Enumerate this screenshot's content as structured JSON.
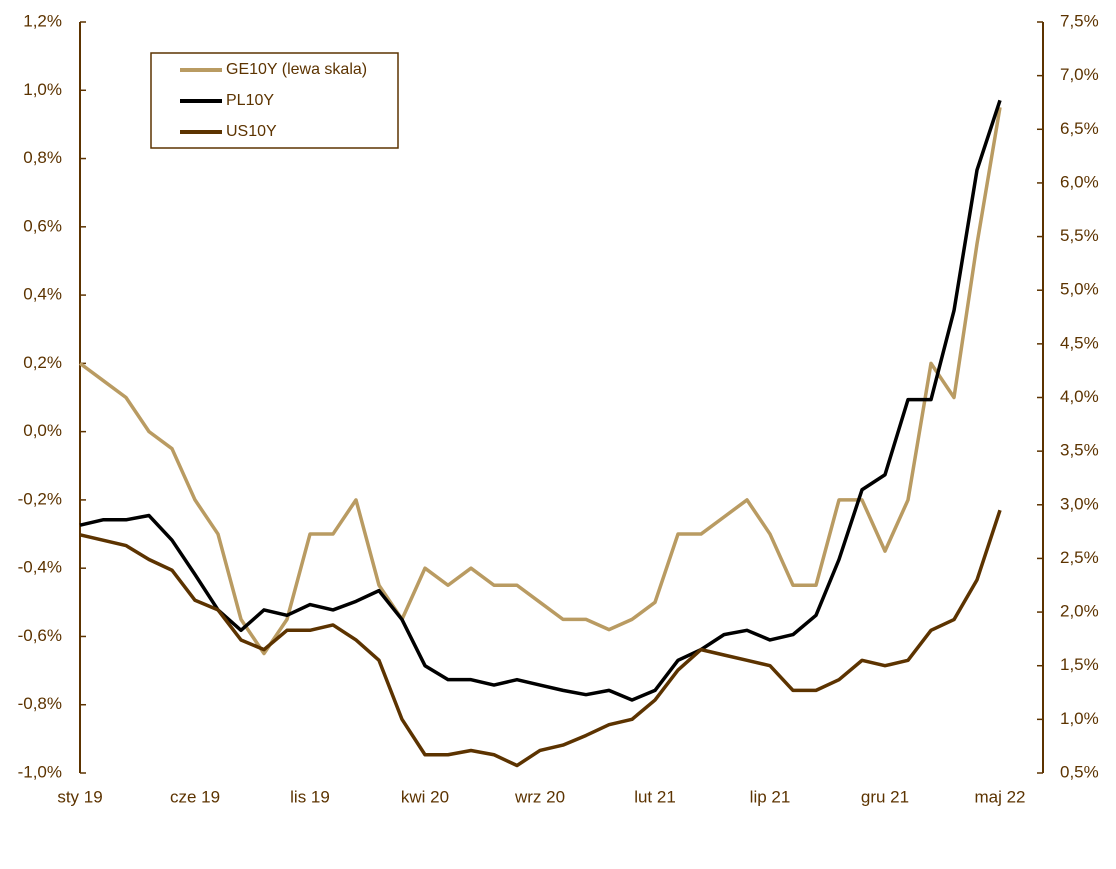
{
  "chart_data": {
    "type": "line",
    "categories": [
      "sty 19",
      null,
      null,
      null,
      null,
      "cze 19",
      null,
      null,
      null,
      null,
      "lis 19",
      null,
      null,
      null,
      null,
      "kwi 20",
      null,
      null,
      null,
      null,
      "wrz 20",
      null,
      null,
      null,
      null,
      "lut 21",
      null,
      null,
      null,
      null,
      "lip 21",
      null,
      null,
      null,
      null,
      "gru 21",
      null,
      null,
      null,
      null,
      "maj 22"
    ],
    "series": [
      {
        "name": "GE10Y (lewa skala)",
        "color": "#b99b62",
        "axis": "y",
        "values": [
          0.2,
          0.15,
          0.1,
          0.0,
          -0.05,
          -0.2,
          -0.3,
          -0.55,
          -0.65,
          -0.55,
          -0.3,
          -0.3,
          -0.2,
          -0.45,
          -0.55,
          -0.4,
          -0.45,
          -0.4,
          -0.45,
          -0.45,
          -0.5,
          -0.55,
          -0.55,
          -0.58,
          -0.55,
          -0.5,
          -0.3,
          -0.3,
          -0.25,
          -0.2,
          -0.3,
          -0.45,
          -0.45,
          -0.2,
          -0.2,
          -0.35,
          -0.2,
          0.2,
          0.1,
          0.55,
          0.95
        ]
      },
      {
        "name": "PL10Y",
        "color": "#000000",
        "axis": "y2",
        "values": [
          2.81,
          2.86,
          2.86,
          2.9,
          2.67,
          2.35,
          2.02,
          1.83,
          2.02,
          1.97,
          2.07,
          2.02,
          2.1,
          2.2,
          1.93,
          1.5,
          1.37,
          1.37,
          1.32,
          1.37,
          1.32,
          1.27,
          1.23,
          1.27,
          1.18,
          1.27,
          1.55,
          1.65,
          1.79,
          1.83,
          1.74,
          1.79,
          1.97,
          2.49,
          3.14,
          3.28,
          3.98,
          3.98,
          4.81,
          6.12,
          6.77
        ]
      },
      {
        "name": "US10Y",
        "color": "#5c3300",
        "axis": "y2",
        "values": [
          2.72,
          2.67,
          2.62,
          2.49,
          2.39,
          2.11,
          2.02,
          1.74,
          1.65,
          1.83,
          1.83,
          1.88,
          1.74,
          1.55,
          1.0,
          0.67,
          0.67,
          0.71,
          0.67,
          0.57,
          0.71,
          0.76,
          0.85,
          0.95,
          1.0,
          1.18,
          1.46,
          1.65,
          1.6,
          1.55,
          1.5,
          1.27,
          1.27,
          1.37,
          1.55,
          1.5,
          1.55,
          1.83,
          1.93,
          2.3,
          2.95
        ]
      }
    ],
    "ylim": [
      -1.0,
      1.2
    ],
    "yticks": [
      {
        "value": -1.0,
        "label": "-1,0%"
      },
      {
        "value": -0.8,
        "label": "-0,8%"
      },
      {
        "value": -0.6,
        "label": "-0,6%"
      },
      {
        "value": -0.4,
        "label": "-0,4%"
      },
      {
        "value": -0.2,
        "label": "-0,2%"
      },
      {
        "value": 0.0,
        "label": "0,0%"
      },
      {
        "value": 0.2,
        "label": "0,2%"
      },
      {
        "value": 0.4,
        "label": "0,4%"
      },
      {
        "value": 0.6,
        "label": "0,6%"
      },
      {
        "value": 0.8,
        "label": "0,8%"
      },
      {
        "value": 1.0,
        "label": "1,0%"
      },
      {
        "value": 1.2,
        "label": "1,2%"
      }
    ],
    "y2lim": [
      0.5,
      7.5
    ],
    "y2ticks": [
      {
        "value": 0.5,
        "label": "0,5%"
      },
      {
        "value": 1.0,
        "label": "1,0%"
      },
      {
        "value": 1.5,
        "label": "1,5%"
      },
      {
        "value": 2.0,
        "label": "2,0%"
      },
      {
        "value": 2.5,
        "label": "2,5%"
      },
      {
        "value": 3.0,
        "label": "3,0%"
      },
      {
        "value": 3.5,
        "label": "3,5%"
      },
      {
        "value": 4.0,
        "label": "4,0%"
      },
      {
        "value": 4.5,
        "label": "4,5%"
      },
      {
        "value": 5.0,
        "label": "5,0%"
      },
      {
        "value": 5.5,
        "label": "5,5%"
      },
      {
        "value": 6.0,
        "label": "6,0%"
      },
      {
        "value": 6.5,
        "label": "6,5%"
      },
      {
        "value": 7.0,
        "label": "7,0%"
      },
      {
        "value": 7.5,
        "label": "7,5%"
      }
    ],
    "legend": "upper left",
    "axis_color": "#5c3300"
  }
}
